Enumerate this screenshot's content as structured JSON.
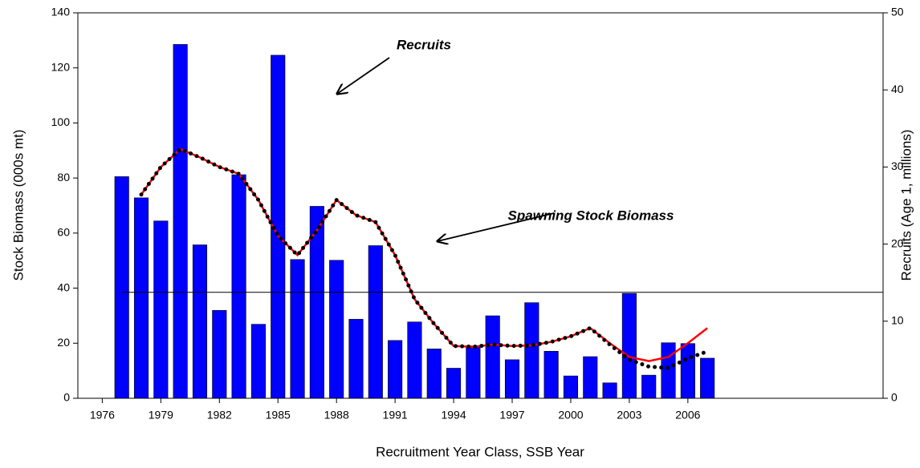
{
  "chart_data": {
    "type": "bar",
    "x_label": "Recruitment Year Class, SSB Year",
    "y_label": "Stock Biomass (000s mt)",
    "y2_label": "Recruits (Age 1, millions)",
    "xlim": [
      1974.75,
      2016
    ],
    "xticks": [
      1976,
      1979,
      1982,
      1985,
      1988,
      1991,
      1994,
      1997,
      2000,
      2003,
      2006
    ],
    "ylim": [
      0,
      140
    ],
    "yticks": [
      0,
      20,
      40,
      60,
      80,
      100,
      120,
      140
    ],
    "y2lim": [
      0,
      50
    ],
    "y2ticks": [
      0,
      10,
      20,
      30,
      40,
      50
    ],
    "x": [
      1977,
      1978,
      1979,
      1980,
      1981,
      1982,
      1983,
      1984,
      1985,
      1986,
      1987,
      1988,
      1989,
      1990,
      1991,
      1992,
      1993,
      1994,
      1995,
      1996,
      1997,
      1998,
      1999,
      2000,
      2001,
      2002,
      2003,
      2004,
      2005,
      2006,
      2007
    ],
    "series": [
      {
        "type": "bar",
        "axis": "y2",
        "color": "#0000ff",
        "values": [
          28.75,
          26,
          23,
          45.9,
          19.9,
          11.4,
          29,
          9.6,
          44.5,
          18,
          24.9,
          17.9,
          10.25,
          19.8,
          7.5,
          9.9,
          6.4,
          3.9,
          6.8,
          10.7,
          5,
          12.4,
          6.1,
          2.9,
          5.4,
          2,
          13.6,
          3,
          7.2,
          7.1,
          5.2
        ]
      },
      {
        "type": "line",
        "color": "#ff0000",
        "values": [
          null,
          74,
          84,
          90.5,
          87.5,
          84,
          81.5,
          72,
          59,
          52,
          61,
          72,
          66.5,
          64,
          52,
          36,
          27,
          19,
          18.7,
          19.5,
          19,
          19.2,
          20.5,
          22.5,
          25.5,
          20,
          15,
          13.5,
          15,
          20,
          25.5
        ]
      },
      {
        "type": "dotted",
        "color": "#000000",
        "values": [
          null,
          74,
          84,
          90.5,
          87.5,
          84,
          81.5,
          72,
          59,
          52,
          61,
          72,
          66.5,
          64,
          52,
          36,
          27,
          19,
          18.7,
          19.5,
          19,
          19.2,
          20.5,
          22.5,
          25.5,
          19.5,
          14,
          11.5,
          11,
          14.5,
          17
        ]
      }
    ],
    "reference_line": {
      "value": 38.5,
      "x_start": 1977
    },
    "annotations": [
      "Recruits",
      "Spawning Stock Biomass"
    ]
  }
}
